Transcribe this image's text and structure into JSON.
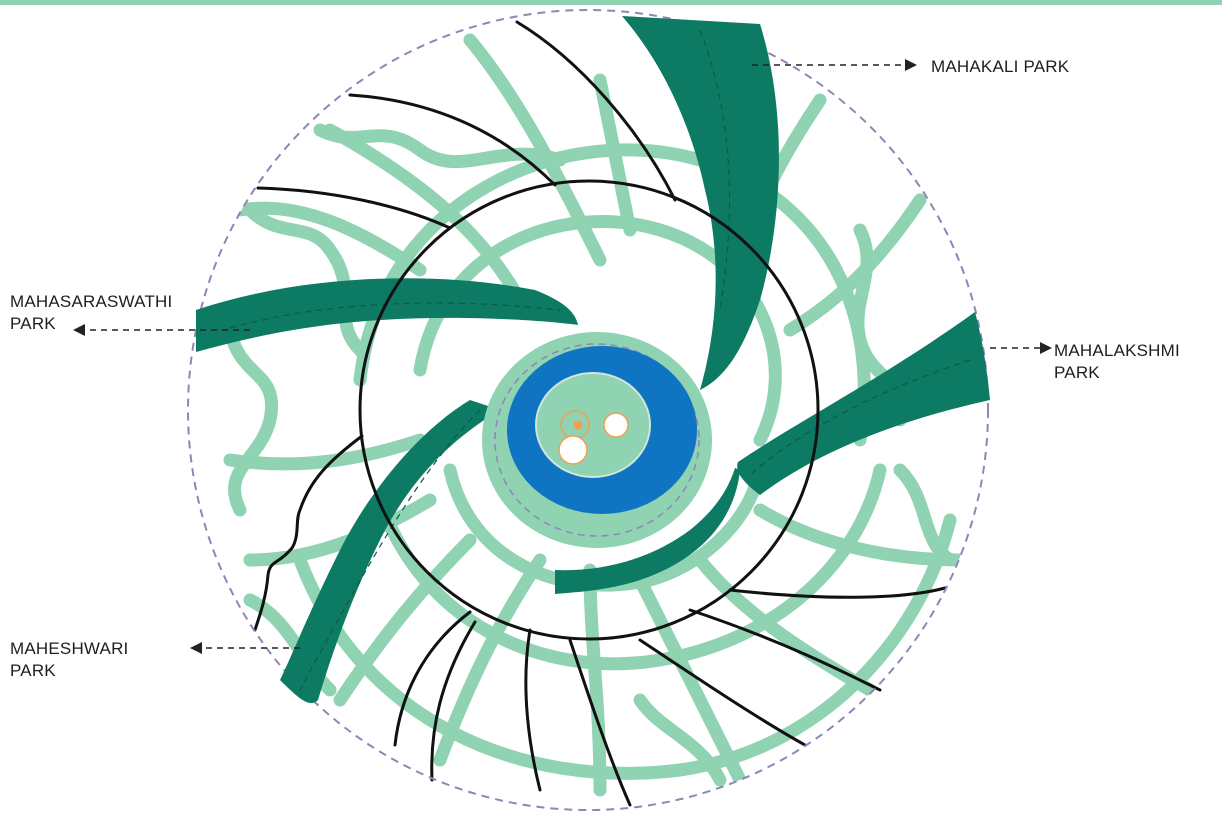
{
  "colors": {
    "light_green": "#8fd3b3",
    "dark_green": "#0d7a63",
    "water_blue": "#0f74c2",
    "black_line": "#111111",
    "boundary": "#8e86b5",
    "core": "#f0a050"
  },
  "labels": {
    "mahakali": "MAHAKALI PARK",
    "mahasaraswathi_line1": "MAHASARASWATHI",
    "mahasaraswathi_line2": "PARK",
    "mahalakshmi_line1": "MAHALAKSHMI",
    "mahalakshmi_line2": "PARK",
    "maheshwari_line1": "MAHESHWARI",
    "maheshwari_line2": "PARK"
  }
}
